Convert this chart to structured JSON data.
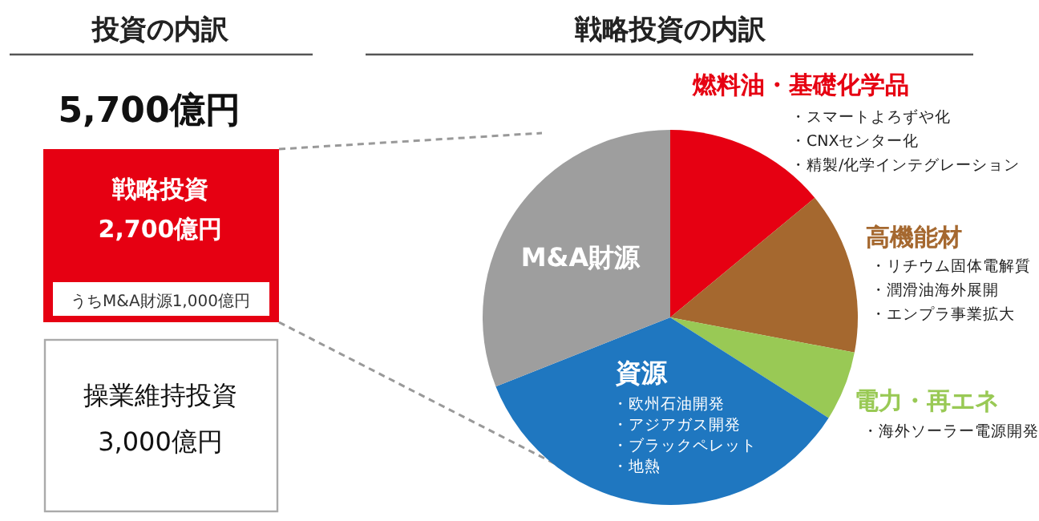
{
  "chart_data": [
    {
      "type": "other",
      "title": "投資の内訳",
      "annotations": [
        "5,700億円",
        "戦略投資",
        "2,700億円",
        "うちM&A財源1,000億円",
        "操業維持投資",
        "3,000億円"
      ]
    },
    {
      "type": "pie",
      "title": "戦略投資の内訳",
      "categories": [
        "燃料油・基礎化学品",
        "高機能材",
        "電力・再エネ",
        "資源",
        "M&A財源"
      ],
      "values": [
        14,
        14,
        6,
        35,
        31
      ],
      "colors": [
        "#e60012",
        "#a5682f",
        "#99c955",
        "#1f77c0",
        "#9e9e9e"
      ],
      "annotations": [
        "・スマートよろずや化",
        "・CNXセンター化",
        "・精製/化学インテグレーション",
        "・リチウム固体電解質",
        "・潤滑油海外展開",
        "・エンプラ事業拡大",
        "・海外ソーラー電源開発",
        "・欧州石油開発",
        "・アジアガス開発",
        "・ブラックペレット",
        "・地熱"
      ]
    }
  ]
}
